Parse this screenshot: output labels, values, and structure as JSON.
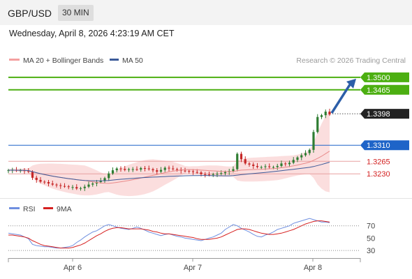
{
  "header": {
    "symbol": "GBP/USD",
    "timeframe": "30 MIN",
    "datetime": "Wednesday, April 8, 2026 4:23:19 AM CET"
  },
  "colors": {
    "candle_up": "#2e7d32",
    "candle_down": "#c62828",
    "resistance": "#4caf11",
    "support": "#1e64c8",
    "ma20_band": "#f4a0a0",
    "ma50": "#3c5a99",
    "rsi": "#6f8fe0",
    "rsi_9ma": "#d62020",
    "arrow": "#2c5ea8",
    "price_tag": "#222222"
  },
  "chart_data": [
    {
      "type": "line",
      "subtype": "candlestick",
      "legend": [
        {
          "name": "MA 20 + Bollinger Bands",
          "color": "#f4a0a0"
        },
        {
          "name": "MA 50",
          "color": "#3c5a99"
        }
      ],
      "credit": "Research © 2026 Trading Central",
      "x_tick_labels": [
        "Apr 6",
        "Apr 7",
        "Apr 8"
      ],
      "y_range": [
        1.317,
        1.3525
      ],
      "levels": [
        {
          "label": "1.3500",
          "value": 1.35,
          "kind": "resistance"
        },
        {
          "label": "1.3465",
          "value": 1.3465,
          "kind": "resistance"
        },
        {
          "label": "1.3398",
          "value": 1.3398,
          "kind": "current"
        },
        {
          "label": "1.3310",
          "value": 1.331,
          "kind": "support"
        },
        {
          "label": "1.3265",
          "value": 1.3265,
          "kind": "support-minor"
        },
        {
          "label": "1.3230",
          "value": 1.323,
          "kind": "support-minor"
        }
      ],
      "close": [
        1.324,
        1.3241,
        1.3239,
        1.324,
        1.3238,
        1.3236,
        1.3219,
        1.3213,
        1.3208,
        1.3207,
        1.3203,
        1.32,
        1.3198,
        1.3196,
        1.3195,
        1.3193,
        1.3193,
        1.3189,
        1.319,
        1.3194,
        1.32,
        1.3203,
        1.3207,
        1.3211,
        1.3218,
        1.3231,
        1.324,
        1.3245,
        1.3244,
        1.3241,
        1.3243,
        1.3243,
        1.3242,
        1.3246,
        1.3245,
        1.3243,
        1.324,
        1.3236,
        1.3241,
        1.3247,
        1.3245,
        1.3243,
        1.3242,
        1.3239,
        1.3238,
        1.3237,
        1.3235,
        1.3234,
        1.3229,
        1.3228,
        1.3227,
        1.3229,
        1.323,
        1.3232,
        1.3235,
        1.3238,
        1.3243,
        1.3286,
        1.3271,
        1.3259,
        1.3256,
        1.3252,
        1.3249,
        1.3249,
        1.3251,
        1.3249,
        1.3249,
        1.3252,
        1.3259,
        1.3257,
        1.3261,
        1.3269,
        1.3276,
        1.3282,
        1.3288,
        1.3297,
        1.3347,
        1.3389,
        1.3394,
        1.3404,
        1.3396
      ],
      "volatility": "derived visually"
    },
    {
      "type": "line",
      "legend": [
        {
          "name": "RSI",
          "color": "#6f8fe0"
        },
        {
          "name": "9MA",
          "color": "#d62020"
        }
      ],
      "y_range": [
        20,
        90
      ],
      "y_ticks": [
        70,
        50,
        30
      ],
      "rsi": [
        58,
        57,
        56,
        55,
        52,
        49,
        40,
        38,
        37,
        36,
        36,
        35,
        34,
        34,
        35,
        36,
        38,
        43,
        47,
        52,
        56,
        60,
        62,
        66,
        70,
        72,
        70,
        68,
        66,
        65,
        64,
        66,
        68,
        66,
        63,
        60,
        58,
        56,
        54,
        56,
        57,
        55,
        53,
        52,
        50,
        49,
        48,
        47,
        46,
        48,
        50,
        52,
        55,
        58,
        64,
        68,
        72,
        70,
        66,
        63,
        60,
        56,
        53,
        52,
        55,
        57,
        60,
        64,
        66,
        68,
        70,
        74,
        76,
        78,
        80,
        82,
        80,
        78,
        76,
        76,
        75
      ],
      "rsi_9ma": [
        55,
        55,
        54,
        53,
        52,
        50,
        46,
        43,
        40,
        38,
        37,
        36,
        35,
        34,
        34,
        34,
        35,
        37,
        39,
        42,
        46,
        50,
        54,
        57,
        61,
        64,
        66,
        67,
        67,
        66,
        65,
        65,
        65,
        65,
        64,
        63,
        61,
        60,
        58,
        57,
        57,
        56,
        55,
        54,
        53,
        52,
        51,
        49,
        48,
        48,
        48,
        49,
        50,
        52,
        55,
        58,
        61,
        64,
        65,
        65,
        64,
        62,
        60,
        58,
        57,
        56,
        56,
        57,
        58,
        60,
        62,
        64,
        67,
        70,
        73,
        75,
        77,
        78,
        78,
        77,
        76
      ]
    }
  ]
}
